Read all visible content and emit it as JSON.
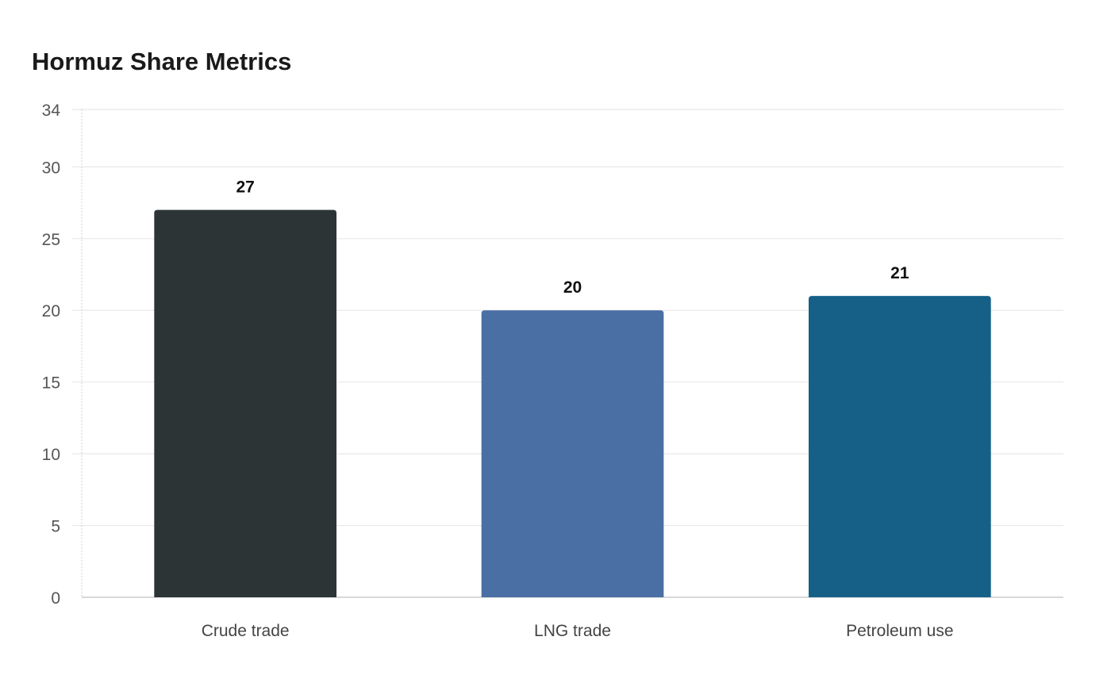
{
  "chart_data": {
    "type": "bar",
    "title": "Hormuz Share Metrics",
    "xlabel": "",
    "ylabel": "",
    "categories": [
      "Crude trade",
      "LNG trade",
      "Petroleum use"
    ],
    "values": [
      27,
      20,
      21
    ],
    "colors": [
      "#2d3436",
      "#4a6fa5",
      "#166088"
    ],
    "ylim": [
      0,
      34
    ],
    "yticks": [
      0,
      5,
      10,
      15,
      20,
      25,
      30,
      34
    ],
    "grid": true,
    "legend": "none"
  }
}
